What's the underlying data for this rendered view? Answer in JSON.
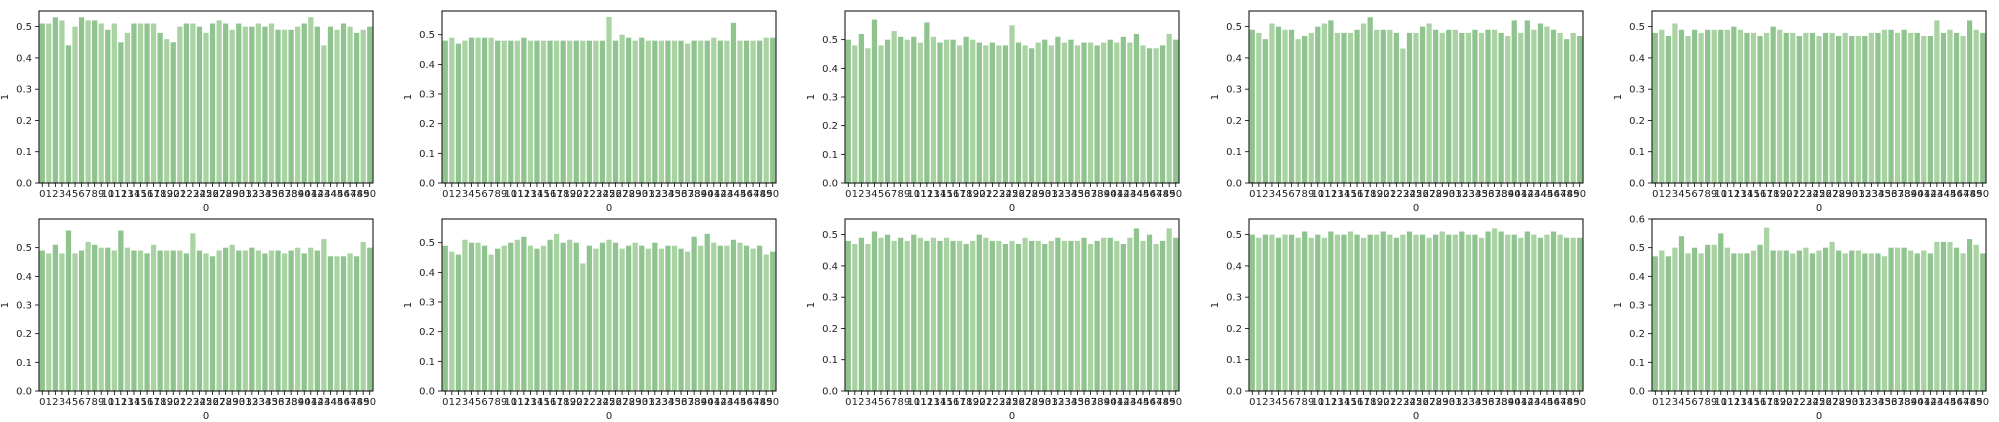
{
  "figure": {
    "background": "#ffffff"
  },
  "chart_data": [
    {
      "type": "bar",
      "xlabel": "0",
      "ylabel": "1",
      "ylim": [
        0,
        0.55
      ],
      "yticks": [
        0,
        0.1,
        0.2,
        0.3,
        0.4,
        0.5
      ],
      "grid": false,
      "colors": [
        "#8fc48f",
        "#a9d3a3"
      ],
      "categories": [
        "0",
        "1",
        "2",
        "3",
        "4",
        "5",
        "6",
        "7",
        "8",
        "9",
        "10",
        "11",
        "12",
        "13",
        "14",
        "15",
        "16",
        "17",
        "18",
        "19",
        "20",
        "21",
        "22",
        "23",
        "24",
        "25",
        "26",
        "27",
        "28",
        "29",
        "30",
        "31",
        "32",
        "33",
        "34",
        "35",
        "36",
        "37",
        "38",
        "39",
        "40",
        "41",
        "42",
        "43",
        "44",
        "45",
        "46",
        "47",
        "48",
        "49",
        "50"
      ],
      "values": [
        0.51,
        0.51,
        0.53,
        0.52,
        0.44,
        0.5,
        0.53,
        0.52,
        0.52,
        0.51,
        0.49,
        0.51,
        0.45,
        0.48,
        0.51,
        0.51,
        0.51,
        0.51,
        0.48,
        0.46,
        0.45,
        0.5,
        0.51,
        0.51,
        0.5,
        0.48,
        0.51,
        0.52,
        0.51,
        0.49,
        0.51,
        0.5,
        0.5,
        0.51,
        0.5,
        0.51,
        0.49,
        0.49,
        0.49,
        0.5,
        0.51,
        0.53,
        0.5,
        0.44,
        0.5,
        0.49,
        0.51,
        0.5,
        0.48,
        0.49,
        0.5
      ]
    },
    {
      "type": "bar",
      "xlabel": "0",
      "ylabel": "1",
      "ylim": [
        0,
        0.58
      ],
      "yticks": [
        0,
        0.1,
        0.2,
        0.3,
        0.4,
        0.5
      ],
      "grid": false,
      "colors": [
        "#8fc48f",
        "#a9d3a3"
      ],
      "categories": [
        "0",
        "1",
        "2",
        "3",
        "4",
        "5",
        "6",
        "7",
        "8",
        "9",
        "10",
        "11",
        "12",
        "13",
        "14",
        "15",
        "16",
        "17",
        "18",
        "19",
        "20",
        "21",
        "22",
        "23",
        "24",
        "25",
        "26",
        "27",
        "28",
        "29",
        "30",
        "31",
        "32",
        "33",
        "34",
        "35",
        "36",
        "37",
        "38",
        "39",
        "40",
        "41",
        "42",
        "43",
        "44",
        "45",
        "46",
        "47",
        "48",
        "49",
        "50"
      ],
      "values": [
        0.48,
        0.49,
        0.47,
        0.48,
        0.49,
        0.49,
        0.49,
        0.49,
        0.48,
        0.48,
        0.48,
        0.48,
        0.49,
        0.48,
        0.48,
        0.48,
        0.48,
        0.48,
        0.48,
        0.48,
        0.48,
        0.48,
        0.48,
        0.48,
        0.48,
        0.56,
        0.48,
        0.5,
        0.49,
        0.48,
        0.49,
        0.48,
        0.48,
        0.48,
        0.48,
        0.48,
        0.48,
        0.47,
        0.48,
        0.48,
        0.48,
        0.49,
        0.48,
        0.48,
        0.54,
        0.48,
        0.48,
        0.48,
        0.48,
        0.49,
        0.49
      ]
    },
    {
      "type": "bar",
      "xlabel": "0",
      "ylabel": "1",
      "ylim": [
        0,
        0.6
      ],
      "yticks": [
        0,
        0.1,
        0.2,
        0.3,
        0.4,
        0.5
      ],
      "grid": false,
      "colors": [
        "#8fc48f",
        "#a9d3a3"
      ],
      "categories": [
        "0",
        "1",
        "2",
        "3",
        "4",
        "5",
        "6",
        "7",
        "8",
        "9",
        "10",
        "11",
        "12",
        "13",
        "14",
        "15",
        "16",
        "17",
        "18",
        "19",
        "20",
        "21",
        "22",
        "23",
        "24",
        "25",
        "26",
        "27",
        "28",
        "29",
        "30",
        "31",
        "32",
        "33",
        "34",
        "35",
        "36",
        "37",
        "38",
        "39",
        "40",
        "41",
        "42",
        "43",
        "44",
        "45",
        "46",
        "47",
        "48",
        "49",
        "50"
      ],
      "values": [
        0.5,
        0.48,
        0.52,
        0.47,
        0.57,
        0.48,
        0.5,
        0.53,
        0.51,
        0.5,
        0.51,
        0.49,
        0.56,
        0.51,
        0.49,
        0.5,
        0.5,
        0.48,
        0.51,
        0.5,
        0.49,
        0.48,
        0.49,
        0.48,
        0.48,
        0.55,
        0.49,
        0.48,
        0.47,
        0.49,
        0.5,
        0.48,
        0.51,
        0.49,
        0.5,
        0.48,
        0.49,
        0.49,
        0.48,
        0.49,
        0.5,
        0.49,
        0.51,
        0.49,
        0.52,
        0.48,
        0.47,
        0.47,
        0.48,
        0.52,
        0.5
      ]
    },
    {
      "type": "bar",
      "xlabel": "0",
      "ylabel": "1",
      "ylim": [
        0,
        0.55
      ],
      "yticks": [
        0,
        0.1,
        0.2,
        0.3,
        0.4,
        0.5
      ],
      "grid": false,
      "colors": [
        "#8fc48f",
        "#a9d3a3"
      ],
      "categories": [
        "0",
        "1",
        "2",
        "3",
        "4",
        "5",
        "6",
        "7",
        "8",
        "9",
        "10",
        "11",
        "12",
        "13",
        "14",
        "15",
        "16",
        "17",
        "18",
        "19",
        "20",
        "21",
        "22",
        "23",
        "24",
        "25",
        "26",
        "27",
        "28",
        "29",
        "30",
        "31",
        "32",
        "33",
        "34",
        "35",
        "36",
        "37",
        "38",
        "39",
        "40",
        "41",
        "42",
        "43",
        "44",
        "45",
        "46",
        "47",
        "48",
        "49",
        "50"
      ],
      "values": [
        0.49,
        0.48,
        0.46,
        0.51,
        0.5,
        0.49,
        0.49,
        0.46,
        0.47,
        0.48,
        0.5,
        0.51,
        0.52,
        0.48,
        0.48,
        0.48,
        0.49,
        0.51,
        0.53,
        0.49,
        0.49,
        0.49,
        0.48,
        0.43,
        0.48,
        0.48,
        0.5,
        0.51,
        0.49,
        0.48,
        0.49,
        0.49,
        0.48,
        0.48,
        0.49,
        0.48,
        0.49,
        0.49,
        0.48,
        0.47,
        0.52,
        0.48,
        0.52,
        0.49,
        0.51,
        0.5,
        0.49,
        0.48,
        0.46,
        0.48,
        0.47
      ]
    },
    {
      "type": "bar",
      "xlabel": "0",
      "ylabel": "1",
      "ylim": [
        0,
        0.55
      ],
      "yticks": [
        0,
        0.1,
        0.2,
        0.3,
        0.4,
        0.5
      ],
      "grid": false,
      "colors": [
        "#8fc48f",
        "#a9d3a3"
      ],
      "categories": [
        "0",
        "1",
        "2",
        "3",
        "4",
        "5",
        "6",
        "7",
        "8",
        "9",
        "10",
        "11",
        "12",
        "13",
        "14",
        "15",
        "16",
        "17",
        "18",
        "19",
        "20",
        "21",
        "22",
        "23",
        "24",
        "25",
        "26",
        "27",
        "28",
        "29",
        "30",
        "31",
        "32",
        "33",
        "34",
        "35",
        "36",
        "37",
        "38",
        "39",
        "40",
        "41",
        "42",
        "43",
        "44",
        "45",
        "46",
        "47",
        "48",
        "49",
        "50"
      ],
      "values": [
        0.48,
        0.49,
        0.47,
        0.51,
        0.49,
        0.47,
        0.49,
        0.48,
        0.49,
        0.49,
        0.49,
        0.49,
        0.5,
        0.49,
        0.48,
        0.48,
        0.47,
        0.48,
        0.5,
        0.49,
        0.48,
        0.48,
        0.47,
        0.48,
        0.48,
        0.47,
        0.48,
        0.48,
        0.47,
        0.48,
        0.47,
        0.47,
        0.47,
        0.48,
        0.48,
        0.49,
        0.49,
        0.48,
        0.49,
        0.48,
        0.48,
        0.47,
        0.47,
        0.52,
        0.48,
        0.49,
        0.48,
        0.47,
        0.52,
        0.49,
        0.48
      ]
    },
    {
      "type": "bar",
      "xlabel": "0",
      "ylabel": "1",
      "ylim": [
        0,
        0.6
      ],
      "yticks": [
        0,
        0.1,
        0.2,
        0.3,
        0.4,
        0.5
      ],
      "grid": false,
      "colors": [
        "#8fc48f",
        "#a9d3a3"
      ],
      "categories": [
        "0",
        "1",
        "2",
        "3",
        "4",
        "5",
        "6",
        "7",
        "8",
        "9",
        "10",
        "11",
        "12",
        "13",
        "14",
        "15",
        "16",
        "17",
        "18",
        "19",
        "20",
        "21",
        "22",
        "23",
        "24",
        "25",
        "26",
        "27",
        "28",
        "29",
        "30",
        "31",
        "32",
        "33",
        "34",
        "35",
        "36",
        "37",
        "38",
        "39",
        "40",
        "41",
        "42",
        "43",
        "44",
        "45",
        "46",
        "47",
        "48",
        "49",
        "50"
      ],
      "values": [
        0.49,
        0.48,
        0.51,
        0.48,
        0.56,
        0.48,
        0.49,
        0.52,
        0.51,
        0.5,
        0.5,
        0.49,
        0.56,
        0.5,
        0.49,
        0.49,
        0.48,
        0.51,
        0.49,
        0.49,
        0.49,
        0.49,
        0.48,
        0.55,
        0.49,
        0.48,
        0.47,
        0.49,
        0.5,
        0.51,
        0.49,
        0.49,
        0.5,
        0.49,
        0.48,
        0.49,
        0.49,
        0.48,
        0.49,
        0.5,
        0.48,
        0.5,
        0.49,
        0.53,
        0.47,
        0.47,
        0.47,
        0.48,
        0.47,
        0.52,
        0.5
      ]
    },
    {
      "type": "bar",
      "xlabel": "0",
      "ylabel": "1",
      "ylim": [
        0,
        0.58
      ],
      "yticks": [
        0,
        0.1,
        0.2,
        0.3,
        0.4,
        0.5
      ],
      "grid": false,
      "colors": [
        "#8fc48f",
        "#a9d3a3"
      ],
      "categories": [
        "0",
        "1",
        "2",
        "3",
        "4",
        "5",
        "6",
        "7",
        "8",
        "9",
        "10",
        "11",
        "12",
        "13",
        "14",
        "15",
        "16",
        "17",
        "18",
        "19",
        "20",
        "21",
        "22",
        "23",
        "24",
        "25",
        "26",
        "27",
        "28",
        "29",
        "30",
        "31",
        "32",
        "33",
        "34",
        "35",
        "36",
        "37",
        "38",
        "39",
        "40",
        "41",
        "42",
        "43",
        "44",
        "45",
        "46",
        "47",
        "48",
        "49",
        "50"
      ],
      "values": [
        0.49,
        0.47,
        0.46,
        0.51,
        0.5,
        0.5,
        0.49,
        0.46,
        0.48,
        0.49,
        0.5,
        0.51,
        0.52,
        0.49,
        0.48,
        0.49,
        0.51,
        0.53,
        0.5,
        0.51,
        0.5,
        0.43,
        0.49,
        0.48,
        0.5,
        0.51,
        0.5,
        0.48,
        0.49,
        0.5,
        0.49,
        0.48,
        0.5,
        0.48,
        0.49,
        0.49,
        0.48,
        0.47,
        0.52,
        0.49,
        0.53,
        0.5,
        0.49,
        0.49,
        0.51,
        0.5,
        0.49,
        0.48,
        0.49,
        0.46,
        0.47
      ]
    },
    {
      "type": "bar",
      "xlabel": "0",
      "ylabel": "1",
      "ylim": [
        0,
        0.55
      ],
      "yticks": [
        0,
        0.1,
        0.2,
        0.3,
        0.4,
        0.5
      ],
      "grid": false,
      "colors": [
        "#8fc48f",
        "#a9d3a3"
      ],
      "categories": [
        "0",
        "1",
        "2",
        "3",
        "4",
        "5",
        "6",
        "7",
        "8",
        "9",
        "10",
        "11",
        "12",
        "13",
        "14",
        "15",
        "16",
        "17",
        "18",
        "19",
        "20",
        "21",
        "22",
        "23",
        "24",
        "25",
        "26",
        "27",
        "28",
        "29",
        "30",
        "31",
        "32",
        "33",
        "34",
        "35",
        "36",
        "37",
        "38",
        "39",
        "40",
        "41",
        "42",
        "43",
        "44",
        "45",
        "46",
        "47",
        "48",
        "49",
        "50"
      ],
      "values": [
        0.48,
        0.47,
        0.49,
        0.47,
        0.51,
        0.49,
        0.5,
        0.48,
        0.49,
        0.48,
        0.5,
        0.49,
        0.48,
        0.49,
        0.48,
        0.49,
        0.48,
        0.48,
        0.47,
        0.48,
        0.5,
        0.49,
        0.48,
        0.48,
        0.47,
        0.48,
        0.47,
        0.49,
        0.48,
        0.48,
        0.47,
        0.48,
        0.49,
        0.48,
        0.48,
        0.48,
        0.49,
        0.47,
        0.48,
        0.49,
        0.49,
        0.48,
        0.47,
        0.49,
        0.52,
        0.48,
        0.5,
        0.47,
        0.48,
        0.52,
        0.49
      ]
    },
    {
      "type": "bar",
      "xlabel": "0",
      "ylabel": "1",
      "ylim": [
        0,
        0.55
      ],
      "yticks": [
        0,
        0.1,
        0.2,
        0.3,
        0.4,
        0.5
      ],
      "grid": false,
      "colors": [
        "#8fc48f",
        "#a9d3a3"
      ],
      "categories": [
        "0",
        "1",
        "2",
        "3",
        "4",
        "5",
        "6",
        "7",
        "8",
        "9",
        "10",
        "11",
        "12",
        "13",
        "14",
        "15",
        "16",
        "17",
        "18",
        "19",
        "20",
        "21",
        "22",
        "23",
        "24",
        "25",
        "26",
        "27",
        "28",
        "29",
        "30",
        "31",
        "32",
        "33",
        "34",
        "35",
        "36",
        "37",
        "38",
        "39",
        "40",
        "41",
        "42",
        "43",
        "44",
        "45",
        "46",
        "47",
        "48",
        "49",
        "50"
      ],
      "values": [
        0.5,
        0.49,
        0.5,
        0.5,
        0.49,
        0.5,
        0.5,
        0.49,
        0.51,
        0.49,
        0.5,
        0.49,
        0.51,
        0.5,
        0.5,
        0.51,
        0.5,
        0.49,
        0.5,
        0.5,
        0.51,
        0.5,
        0.49,
        0.5,
        0.51,
        0.5,
        0.5,
        0.49,
        0.5,
        0.51,
        0.5,
        0.5,
        0.51,
        0.5,
        0.5,
        0.49,
        0.51,
        0.52,
        0.51,
        0.5,
        0.5,
        0.49,
        0.51,
        0.5,
        0.49,
        0.5,
        0.51,
        0.5,
        0.49,
        0.49,
        0.49
      ]
    },
    {
      "type": "bar",
      "xlabel": "0",
      "ylabel": "1",
      "ylim": [
        0,
        0.6
      ],
      "yticks": [
        0,
        0.1,
        0.2,
        0.3,
        0.4,
        0.5,
        0.6
      ],
      "grid": false,
      "colors": [
        "#8fc48f",
        "#a9d3a3"
      ],
      "categories": [
        "0",
        "1",
        "2",
        "3",
        "4",
        "5",
        "6",
        "7",
        "8",
        "9",
        "10",
        "11",
        "12",
        "13",
        "14",
        "15",
        "16",
        "17",
        "18",
        "19",
        "20",
        "21",
        "22",
        "23",
        "24",
        "25",
        "26",
        "27",
        "28",
        "29",
        "30",
        "31",
        "32",
        "33",
        "34",
        "35",
        "36",
        "37",
        "38",
        "39",
        "40",
        "41",
        "42",
        "43",
        "44",
        "45",
        "46",
        "47",
        "48",
        "49",
        "50"
      ],
      "values": [
        0.47,
        0.49,
        0.47,
        0.5,
        0.54,
        0.48,
        0.5,
        0.48,
        0.51,
        0.51,
        0.55,
        0.5,
        0.48,
        0.48,
        0.48,
        0.49,
        0.51,
        0.57,
        0.49,
        0.49,
        0.49,
        0.48,
        0.49,
        0.5,
        0.48,
        0.49,
        0.5,
        0.52,
        0.49,
        0.48,
        0.49,
        0.49,
        0.48,
        0.48,
        0.48,
        0.47,
        0.5,
        0.5,
        0.5,
        0.49,
        0.48,
        0.49,
        0.48,
        0.52,
        0.52,
        0.52,
        0.5,
        0.48,
        0.53,
        0.51,
        0.48
      ]
    }
  ]
}
